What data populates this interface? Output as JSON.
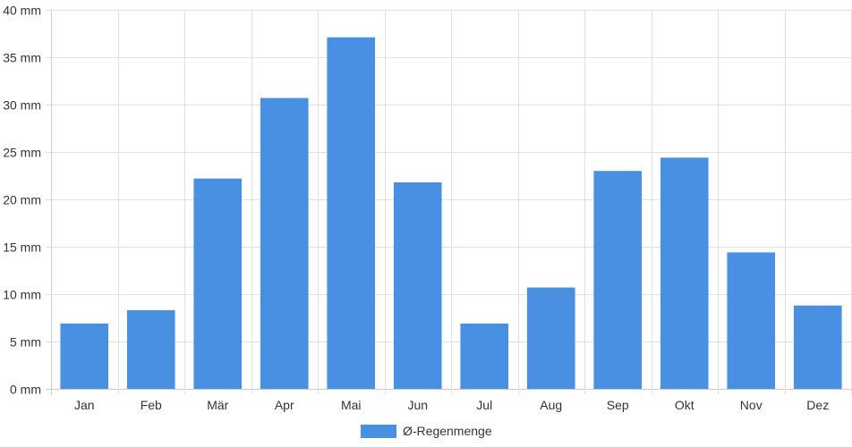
{
  "chart_data": {
    "type": "bar",
    "categories": [
      "Jan",
      "Feb",
      "Mär",
      "Apr",
      "Mai",
      "Jun",
      "Jul",
      "Aug",
      "Sep",
      "Okt",
      "Nov",
      "Dez"
    ],
    "series": [
      {
        "name": "Ø-Regenmenge",
        "values": [
          6.9,
          8.3,
          22.2,
          30.7,
          37.1,
          21.8,
          6.9,
          10.7,
          23.0,
          24.4,
          14.4,
          8.8
        ]
      }
    ],
    "y_ticks": [
      "0 mm",
      "5 mm",
      "10 mm",
      "15 mm",
      "20 mm",
      "25 mm",
      "30 mm",
      "35 mm",
      "40 mm"
    ],
    "ylim": [
      0,
      40
    ],
    "y_step": 5,
    "grid": true,
    "legend_position": "bottom",
    "colors": {
      "bar": "#4a90e2",
      "grid": "#e0e0e0",
      "axis": "#cccccc",
      "text": "#333333"
    }
  }
}
